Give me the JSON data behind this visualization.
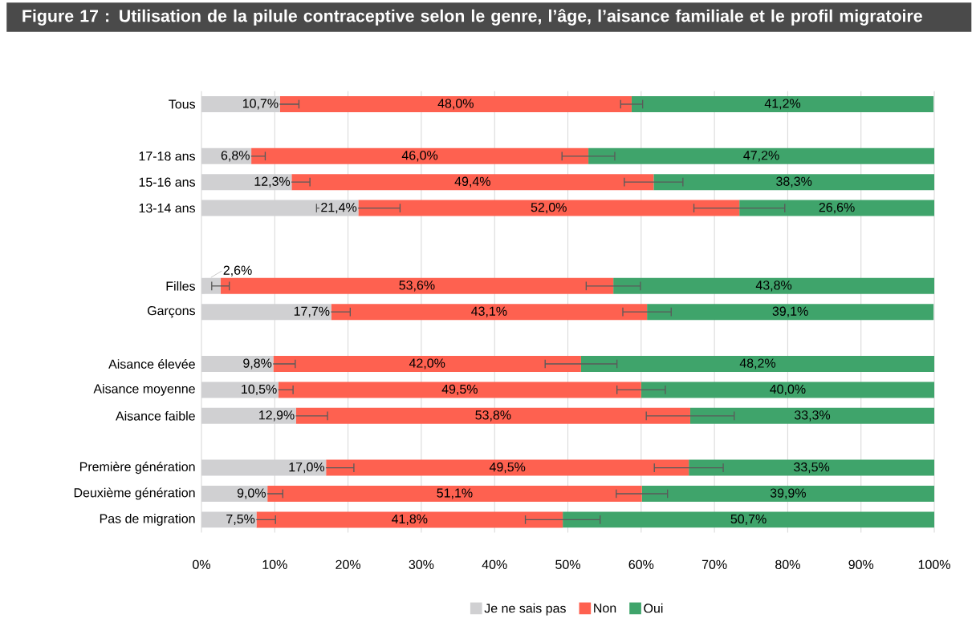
{
  "chart_data": {
    "type": "bar",
    "orientation": "horizontal",
    "stacked": true,
    "title": "Figure 17 : Utilisation de la pilule contraceptive selon le genre, l’âge, l’aisance familiale et le profil migratoire",
    "categories": [
      "Tous",
      null,
      "17-18 ans",
      "15-16 ans",
      "13-14 ans",
      null,
      null,
      "Filles",
      "Garçons",
      null,
      "Aisance élevée",
      "Aisance moyenne",
      "Aisance faible",
      null,
      "Première génération",
      "Deuxième génération",
      "Pas de migration"
    ],
    "series": [
      {
        "name": "Je ne sais pas",
        "color": "#d0d0d2",
        "values": [
          10.7,
          null,
          6.8,
          12.3,
          21.4,
          null,
          null,
          2.6,
          17.7,
          null,
          9.8,
          10.5,
          12.9,
          null,
          17.0,
          9.0,
          7.5
        ],
        "errors": [
          2.6,
          null,
          1.9,
          2.5,
          5.7,
          null,
          null,
          1.2,
          2.6,
          null,
          3.0,
          2.0,
          4.3,
          null,
          3.8,
          2.1,
          2.6
        ],
        "value_labels": [
          "10,7%",
          null,
          "6,8%",
          "12,3%",
          "21,4%",
          null,
          null,
          "2,6%",
          "17,7%",
          null,
          "9,8%",
          "10,5%",
          "12,9%",
          null,
          "17,0%",
          "9,0%",
          "7,5%"
        ]
      },
      {
        "name": "Non",
        "color": "#fe6150",
        "values": [
          48.0,
          null,
          46.0,
          49.4,
          52.0,
          null,
          null,
          53.6,
          43.1,
          null,
          42.0,
          49.5,
          53.8,
          null,
          49.5,
          51.1,
          41.8
        ],
        "errors": [
          1.5,
          null,
          3.6,
          4.0,
          6.2,
          null,
          null,
          3.7,
          3.3,
          null,
          4.9,
          3.3,
          6.0,
          null,
          4.7,
          3.5,
          5.1
        ],
        "value_labels": [
          "48,0%",
          null,
          "46,0%",
          "49,4%",
          "52,0%",
          null,
          null,
          "53,6%",
          "43,1%",
          null,
          "42,0%",
          "49,5%",
          "53,8%",
          null,
          "49,5%",
          "51,1%",
          "41,8%"
        ]
      },
      {
        "name": "Oui",
        "color": "#3fa46b",
        "values": [
          41.2,
          null,
          47.2,
          38.3,
          26.6,
          null,
          null,
          43.8,
          39.1,
          null,
          48.2,
          40.0,
          33.3,
          null,
          33.5,
          39.9,
          50.7
        ],
        "value_labels": [
          "41,2%",
          null,
          "47,2%",
          "38,3%",
          "26,6%",
          null,
          null,
          "43,8%",
          "39,1%",
          null,
          "48,2%",
          "40,0%",
          "33,3%",
          null,
          "33,5%",
          "39,9%",
          "50,7%"
        ]
      }
    ],
    "xlim": [
      0,
      100
    ],
    "xticks": [
      {
        "value": 0,
        "label": "0%"
      },
      {
        "value": 10,
        "label": "10%"
      },
      {
        "value": 20,
        "label": "20%"
      },
      {
        "value": 30,
        "label": "30%"
      },
      {
        "value": 40,
        "label": "40%"
      },
      {
        "value": 50,
        "label": "50%"
      },
      {
        "value": 60,
        "label": "60%"
      },
      {
        "value": 70,
        "label": "70%"
      },
      {
        "value": 80,
        "label": "80%"
      },
      {
        "value": 90,
        "label": "90%"
      },
      {
        "value": 100,
        "label": "100%"
      }
    ],
    "grid": "x",
    "legend": "bottom"
  }
}
